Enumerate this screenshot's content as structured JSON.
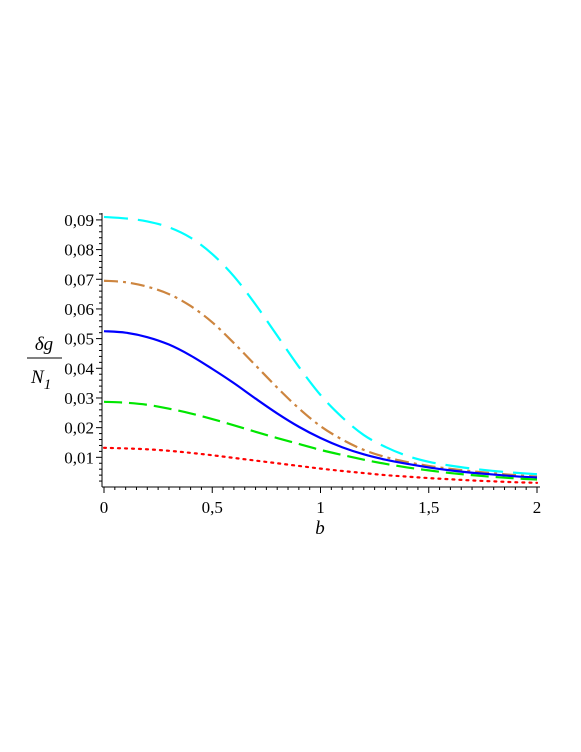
{
  "chart_data": {
    "type": "line",
    "title": "",
    "xlabel": "b",
    "ylabel_numerator": "δg",
    "ylabel_denominator": "N",
    "ylabel_subscript": "1",
    "xlim": [
      0,
      2
    ],
    "ylim": [
      0,
      0.093
    ],
    "grid": false,
    "legend": "none",
    "x_ticks": [
      {
        "value": 0,
        "label": "0"
      },
      {
        "value": 0.5,
        "label": "0,5"
      },
      {
        "value": 1,
        "label": "1"
      },
      {
        "value": 1.5,
        "label": "1,5"
      },
      {
        "value": 2,
        "label": "2"
      }
    ],
    "y_ticks": [
      {
        "value": 0.01,
        "label": "0,01"
      },
      {
        "value": 0.02,
        "label": "0,02"
      },
      {
        "value": 0.03,
        "label": "0,03"
      },
      {
        "value": 0.04,
        "label": "0,04"
      },
      {
        "value": 0.05,
        "label": "0,05"
      },
      {
        "value": 0.06,
        "label": "0,06"
      },
      {
        "value": 0.07,
        "label": "0,07"
      },
      {
        "value": 0.08,
        "label": "0,08"
      },
      {
        "value": 0.09,
        "label": "0,09"
      }
    ],
    "x": [
      0,
      0.1,
      0.2,
      0.3,
      0.4,
      0.5,
      0.6,
      0.7,
      0.8,
      0.9,
      1.0,
      1.1,
      1.2,
      1.3,
      1.4,
      1.5,
      1.6,
      1.7,
      1.8,
      1.9,
      2.0
    ],
    "series": [
      {
        "color": "#00ffff",
        "dash": "24 10",
        "values": [
          0.091,
          0.0905,
          0.0895,
          0.0875,
          0.084,
          0.0785,
          0.071,
          0.0615,
          0.051,
          0.0405,
          0.031,
          0.0235,
          0.0175,
          0.0135,
          0.0105,
          0.0085,
          0.0072,
          0.0062,
          0.0054,
          0.0048,
          0.0043
        ]
      },
      {
        "color": "#cd853f",
        "dash": "14 5 3 5",
        "values": [
          0.0695,
          0.069,
          0.0675,
          0.065,
          0.061,
          0.0555,
          0.0485,
          0.041,
          0.0335,
          0.0265,
          0.0205,
          0.016,
          0.0125,
          0.0101,
          0.0084,
          0.0071,
          0.0061,
          0.0053,
          0.0046,
          0.004,
          0.0035
        ]
      },
      {
        "color": "#0000ff",
        "dash": "",
        "values": [
          0.0525,
          0.052,
          0.0505,
          0.048,
          0.0443,
          0.0398,
          0.035,
          0.0298,
          0.0248,
          0.0203,
          0.0165,
          0.0134,
          0.011,
          0.0092,
          0.0078,
          0.0066,
          0.0056,
          0.0048,
          0.0042,
          0.0036,
          0.0032
        ]
      },
      {
        "color": "#00e600",
        "dash": "18 7",
        "values": [
          0.0287,
          0.0284,
          0.0277,
          0.0264,
          0.0248,
          0.0229,
          0.0208,
          0.0186,
          0.0165,
          0.0145,
          0.0125,
          0.0108,
          0.0092,
          0.0078,
          0.0066,
          0.0056,
          0.0047,
          0.004,
          0.0034,
          0.0029,
          0.0025
        ]
      },
      {
        "color": "#ff0000",
        "dash": "2 5",
        "values": [
          0.0132,
          0.013,
          0.0127,
          0.0122,
          0.0115,
          0.0107,
          0.0098,
          0.0089,
          0.008,
          0.0071,
          0.0062,
          0.0054,
          0.0047,
          0.004,
          0.0035,
          0.003,
          0.0026,
          0.0022,
          0.0019,
          0.0016,
          0.0014
        ]
      }
    ]
  }
}
